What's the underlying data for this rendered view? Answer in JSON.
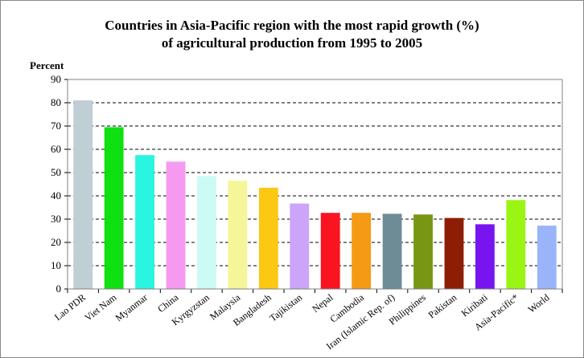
{
  "chart_data": {
    "type": "bar",
    "title": [
      "Countries in Asia-Pacific region with the most rapid growth (%)",
      "of agricultural production from 1995 to 2005"
    ],
    "ylabel": "Percent",
    "xlabel": "",
    "ylim": [
      0,
      90
    ],
    "yticks": [
      0,
      10,
      20,
      30,
      40,
      50,
      60,
      70,
      80,
      90
    ],
    "grid": "horizontal dashed",
    "categories": [
      "Lao PDR",
      "Viet Nam",
      "Myanmar",
      "China",
      "Kyrgyzstan",
      "Malaysia",
      "Bangladesh",
      "Tajikistan",
      "Nepal",
      "Cambodia",
      "Iran (Islamic Rep. of)",
      "Philippines",
      "Pakistan",
      "Kiribati",
      "Asia-Pacific*",
      "World"
    ],
    "values": [
      81,
      69.5,
      57.5,
      54.7,
      48.5,
      46.5,
      43.5,
      36.7,
      32.7,
      32.7,
      32.3,
      32,
      30.5,
      27.8,
      38.2,
      27.2
    ],
    "colors": [
      "#c0ced6",
      "#10e010",
      "#2af5e0",
      "#f59af0",
      "#ccfaf5",
      "#f5f59a",
      "#fcc814",
      "#cca5fa",
      "#fa1420",
      "#f59a14",
      "#6e8c96",
      "#789614",
      "#8c1e05",
      "#7814f0",
      "#9af514",
      "#9ab4fa"
    ]
  }
}
